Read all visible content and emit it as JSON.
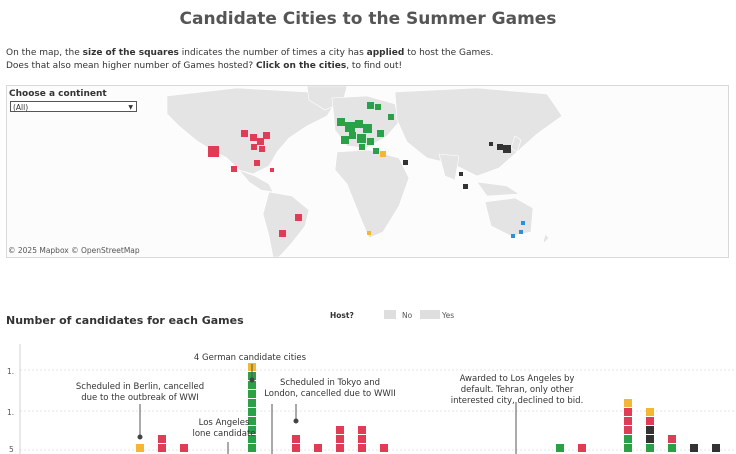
{
  "title": "Candidate Cities to the Summer Games",
  "intro": {
    "line1_a": "On the map, the ",
    "line1_b": "size of the squares",
    "line1_c": " indicates the number of times a city has ",
    "line1_d": "applied",
    "line1_e": " to host the Games.",
    "line2_a": "Does that also mean higher number of Games hosted? ",
    "line2_b": "Click on the cities",
    "line2_c": ", to find out!"
  },
  "filter": {
    "label": "Choose a continent",
    "value": "(All)"
  },
  "map": {
    "attribution": "© 2025 Mapbox © OpenStreetMap"
  },
  "chart_section": {
    "title": "Number of candidates for each Games",
    "legend": {
      "title": "Host?",
      "no": "No",
      "yes": "Yes"
    },
    "y_ticks": [
      "1.",
      "1.",
      "5"
    ],
    "annotations": {
      "berlin": "Scheduled in Berlin, cancelled due to the outbreak of WWI",
      "german": "4 German candidate cities",
      "losangeles": "Los Angeles lone candidate",
      "tokyo": "Scheduled in Tokyo and London, cancelled due to WWII",
      "awarded": "Awarded to Los Angeles by default. Tehran, only other interested city, declined to bid."
    }
  },
  "colors": {
    "americas": "#e03c55",
    "europe": "#2aa047",
    "africa": "#f5b731",
    "asia": "#333333",
    "oceania": "#2d8fd6",
    "land": "#e4e4e4",
    "ocean": "#fcfcfc"
  },
  "chart_data": {
    "type": "bar",
    "title": "Number of candidates for each Games",
    "note": "stacked unit squares per Games, colored by continent",
    "stacks": [
      [
        "africa"
      ],
      [
        "americas",
        "americas"
      ],
      [
        "americas"
      ],
      [
        "europe",
        "europe",
        "europe",
        "europe",
        "europe",
        "europe",
        "europe",
        "europe",
        "europe",
        "africa"
      ],
      [
        "americas",
        "americas"
      ],
      [
        "americas"
      ],
      [
        "americas",
        "americas",
        "americas"
      ],
      [
        "americas",
        "americas",
        "americas"
      ],
      [
        "americas"
      ],
      [
        "europe"
      ],
      [
        "americas"
      ],
      [
        "europe",
        "europe",
        "americas",
        "americas",
        "americas",
        "africa"
      ],
      [
        "europe",
        "asia",
        "asia",
        "americas",
        "africa"
      ],
      [
        "europe",
        "americas"
      ],
      [
        "asia"
      ],
      [
        "asia"
      ]
    ]
  }
}
